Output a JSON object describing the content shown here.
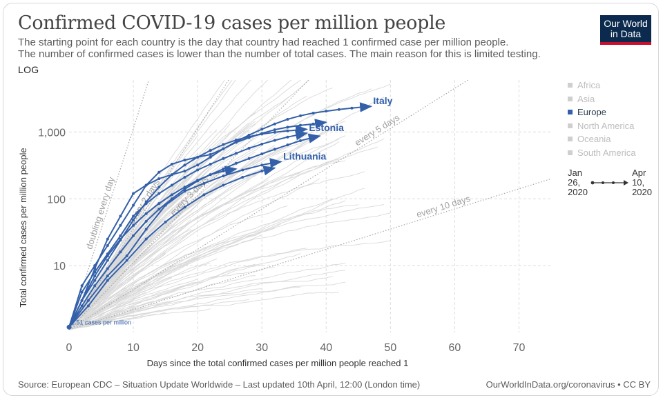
{
  "header": {
    "title": "Confirmed COVID-19 cases per million people",
    "subtitle_line1": "The starting point for each country is the day that country had reached 1 confirmed case per million people.",
    "subtitle_line2": "The number of confirmed cases is lower than the number of total cases. The main reason for this is limited testing.",
    "scale_label": "LOG"
  },
  "logo": {
    "line1": "Our World",
    "line2": "in Data",
    "bg_color": "#0c2a4d",
    "accent_color": "#c8102e"
  },
  "legend": {
    "items": [
      {
        "label": "Africa",
        "active": false
      },
      {
        "label": "Asia",
        "active": false
      },
      {
        "label": "Europe",
        "active": true
      },
      {
        "label": "North America",
        "active": false
      },
      {
        "label": "Oceania",
        "active": false
      },
      {
        "label": "South America",
        "active": false
      }
    ]
  },
  "timeline": {
    "start": "Jan\n26,\n2020",
    "end": "Apr\n10,\n2020"
  },
  "footer": {
    "source": "Source: European CDC – Situation Update Worldwide – Last updated 10th April, 12:00 (London time)",
    "credit": "OurWorldInData.org/coronavirus • CC BY"
  },
  "chart_data": {
    "type": "line",
    "title": "Confirmed COVID-19 cases per million people",
    "xlabel": "Days since the total confirmed cases per million people reached 1",
    "ylabel": "Total confirmed cases per million people",
    "y_scale": "log",
    "xlim": [
      0,
      75
    ],
    "ylim": [
      1,
      6000
    ],
    "x_ticks": [
      0,
      10,
      20,
      30,
      40,
      50,
      60,
      70
    ],
    "y_ticks": [
      {
        "value": 10,
        "label": "10"
      },
      {
        "value": 100,
        "label": "100"
      },
      {
        "value": 1000,
        "label": "1,000"
      }
    ],
    "grid": true,
    "accent_color": "#3360a9",
    "background_series_color": "#d9d9d9",
    "start_annotation": "1.51 cases per million",
    "reference_lines": [
      {
        "label": "doubling every day",
        "doubling_days": 1
      },
      {
        "label": "every 2 days",
        "doubling_days": 2
      },
      {
        "label": "every 3 days",
        "doubling_days": 3
      },
      {
        "label": "every 5 days",
        "doubling_days": 5
      },
      {
        "label": "every 10 days",
        "doubling_days": 10
      }
    ],
    "series": [
      {
        "name": "Italy",
        "labeled": true,
        "points": [
          [
            0,
            1.2
          ],
          [
            2,
            3
          ],
          [
            4,
            9
          ],
          [
            6,
            25
          ],
          [
            8,
            55
          ],
          [
            10,
            120
          ],
          [
            12,
            160
          ],
          [
            14,
            200
          ],
          [
            16,
            230
          ],
          [
            18,
            260
          ],
          [
            20,
            320
          ],
          [
            22,
            420
          ],
          [
            24,
            560
          ],
          [
            26,
            720
          ],
          [
            28,
            900
          ],
          [
            30,
            1100
          ],
          [
            32,
            1320
          ],
          [
            34,
            1550
          ],
          [
            36,
            1750
          ],
          [
            38,
            1920
          ],
          [
            40,
            2050
          ],
          [
            42,
            2170
          ],
          [
            44,
            2280
          ],
          [
            46,
            2380
          ],
          [
            47,
            2420
          ]
        ]
      },
      {
        "name": "Estonia",
        "labeled": true,
        "points": [
          [
            0,
            1.2
          ],
          [
            2,
            4
          ],
          [
            4,
            8
          ],
          [
            6,
            15
          ],
          [
            8,
            28
          ],
          [
            10,
            55
          ],
          [
            12,
            85
          ],
          [
            14,
            120
          ],
          [
            16,
            160
          ],
          [
            18,
            210
          ],
          [
            20,
            270
          ],
          [
            22,
            330
          ],
          [
            24,
            400
          ],
          [
            26,
            480
          ],
          [
            28,
            570
          ],
          [
            30,
            660
          ],
          [
            32,
            750
          ],
          [
            34,
            840
          ],
          [
            36,
            920
          ],
          [
            37,
            960
          ]
        ]
      },
      {
        "name": "Lithuania",
        "labeled": true,
        "points": [
          [
            0,
            1.2
          ],
          [
            3,
            3
          ],
          [
            6,
            7
          ],
          [
            9,
            14
          ],
          [
            12,
            35
          ],
          [
            15,
            80
          ],
          [
            18,
            130
          ],
          [
            21,
            170
          ],
          [
            24,
            220
          ],
          [
            27,
            270
          ],
          [
            30,
            320
          ],
          [
            32,
            350
          ],
          [
            33,
            360
          ]
        ]
      },
      {
        "name": "",
        "labeled": false,
        "points": [
          [
            0,
            1.2
          ],
          [
            2,
            5
          ],
          [
            4,
            10
          ],
          [
            6,
            20
          ],
          [
            8,
            40
          ],
          [
            10,
            80
          ],
          [
            12,
            160
          ],
          [
            14,
            250
          ],
          [
            16,
            330
          ],
          [
            18,
            380
          ],
          [
            20,
            420
          ],
          [
            22,
            460
          ],
          [
            24,
            560
          ],
          [
            26,
            700
          ],
          [
            28,
            820
          ],
          [
            30,
            950
          ],
          [
            32,
            1080
          ],
          [
            34,
            1180
          ],
          [
            36,
            1260
          ],
          [
            38,
            1320
          ],
          [
            40,
            1400
          ]
        ]
      },
      {
        "name": "",
        "labeled": false,
        "points": [
          [
            0,
            1.2
          ],
          [
            2,
            3
          ],
          [
            4,
            6
          ],
          [
            6,
            12
          ],
          [
            8,
            24
          ],
          [
            10,
            48
          ],
          [
            12,
            90
          ],
          [
            14,
            150
          ],
          [
            16,
            230
          ],
          [
            18,
            320
          ],
          [
            20,
            420
          ],
          [
            22,
            530
          ],
          [
            24,
            650
          ],
          [
            26,
            760
          ],
          [
            28,
            850
          ],
          [
            30,
            930
          ],
          [
            32,
            990
          ],
          [
            34,
            1040
          ],
          [
            36,
            1080
          ],
          [
            37,
            1100
          ]
        ]
      },
      {
        "name": "",
        "labeled": false,
        "points": [
          [
            0,
            1.2
          ],
          [
            2,
            2.5
          ],
          [
            4,
            5
          ],
          [
            6,
            9
          ],
          [
            8,
            16
          ],
          [
            10,
            28
          ],
          [
            12,
            46
          ],
          [
            14,
            70
          ],
          [
            16,
            100
          ],
          [
            18,
            140
          ],
          [
            20,
            185
          ],
          [
            22,
            230
          ],
          [
            24,
            280
          ],
          [
            26,
            340
          ],
          [
            28,
            400
          ],
          [
            30,
            470
          ],
          [
            32,
            550
          ],
          [
            34,
            640
          ],
          [
            36,
            740
          ],
          [
            38,
            830
          ],
          [
            39,
            870
          ]
        ]
      },
      {
        "name": "",
        "labeled": false,
        "points": [
          [
            0,
            1.2
          ],
          [
            2,
            3
          ],
          [
            4,
            7
          ],
          [
            6,
            14
          ],
          [
            8,
            25
          ],
          [
            10,
            40
          ],
          [
            12,
            60
          ],
          [
            14,
            85
          ],
          [
            16,
            115
          ],
          [
            18,
            150
          ],
          [
            20,
            190
          ],
          [
            22,
            230
          ],
          [
            24,
            260
          ],
          [
            26,
            280
          ]
        ]
      },
      {
        "name": "",
        "labeled": false,
        "points": [
          [
            0,
            1.2
          ],
          [
            3,
            2.5
          ],
          [
            6,
            6
          ],
          [
            9,
            12
          ],
          [
            12,
            25
          ],
          [
            15,
            45
          ],
          [
            18,
            75
          ],
          [
            21,
            115
          ],
          [
            24,
            160
          ],
          [
            27,
            210
          ],
          [
            30,
            260
          ],
          [
            32,
            290
          ]
        ]
      }
    ]
  }
}
